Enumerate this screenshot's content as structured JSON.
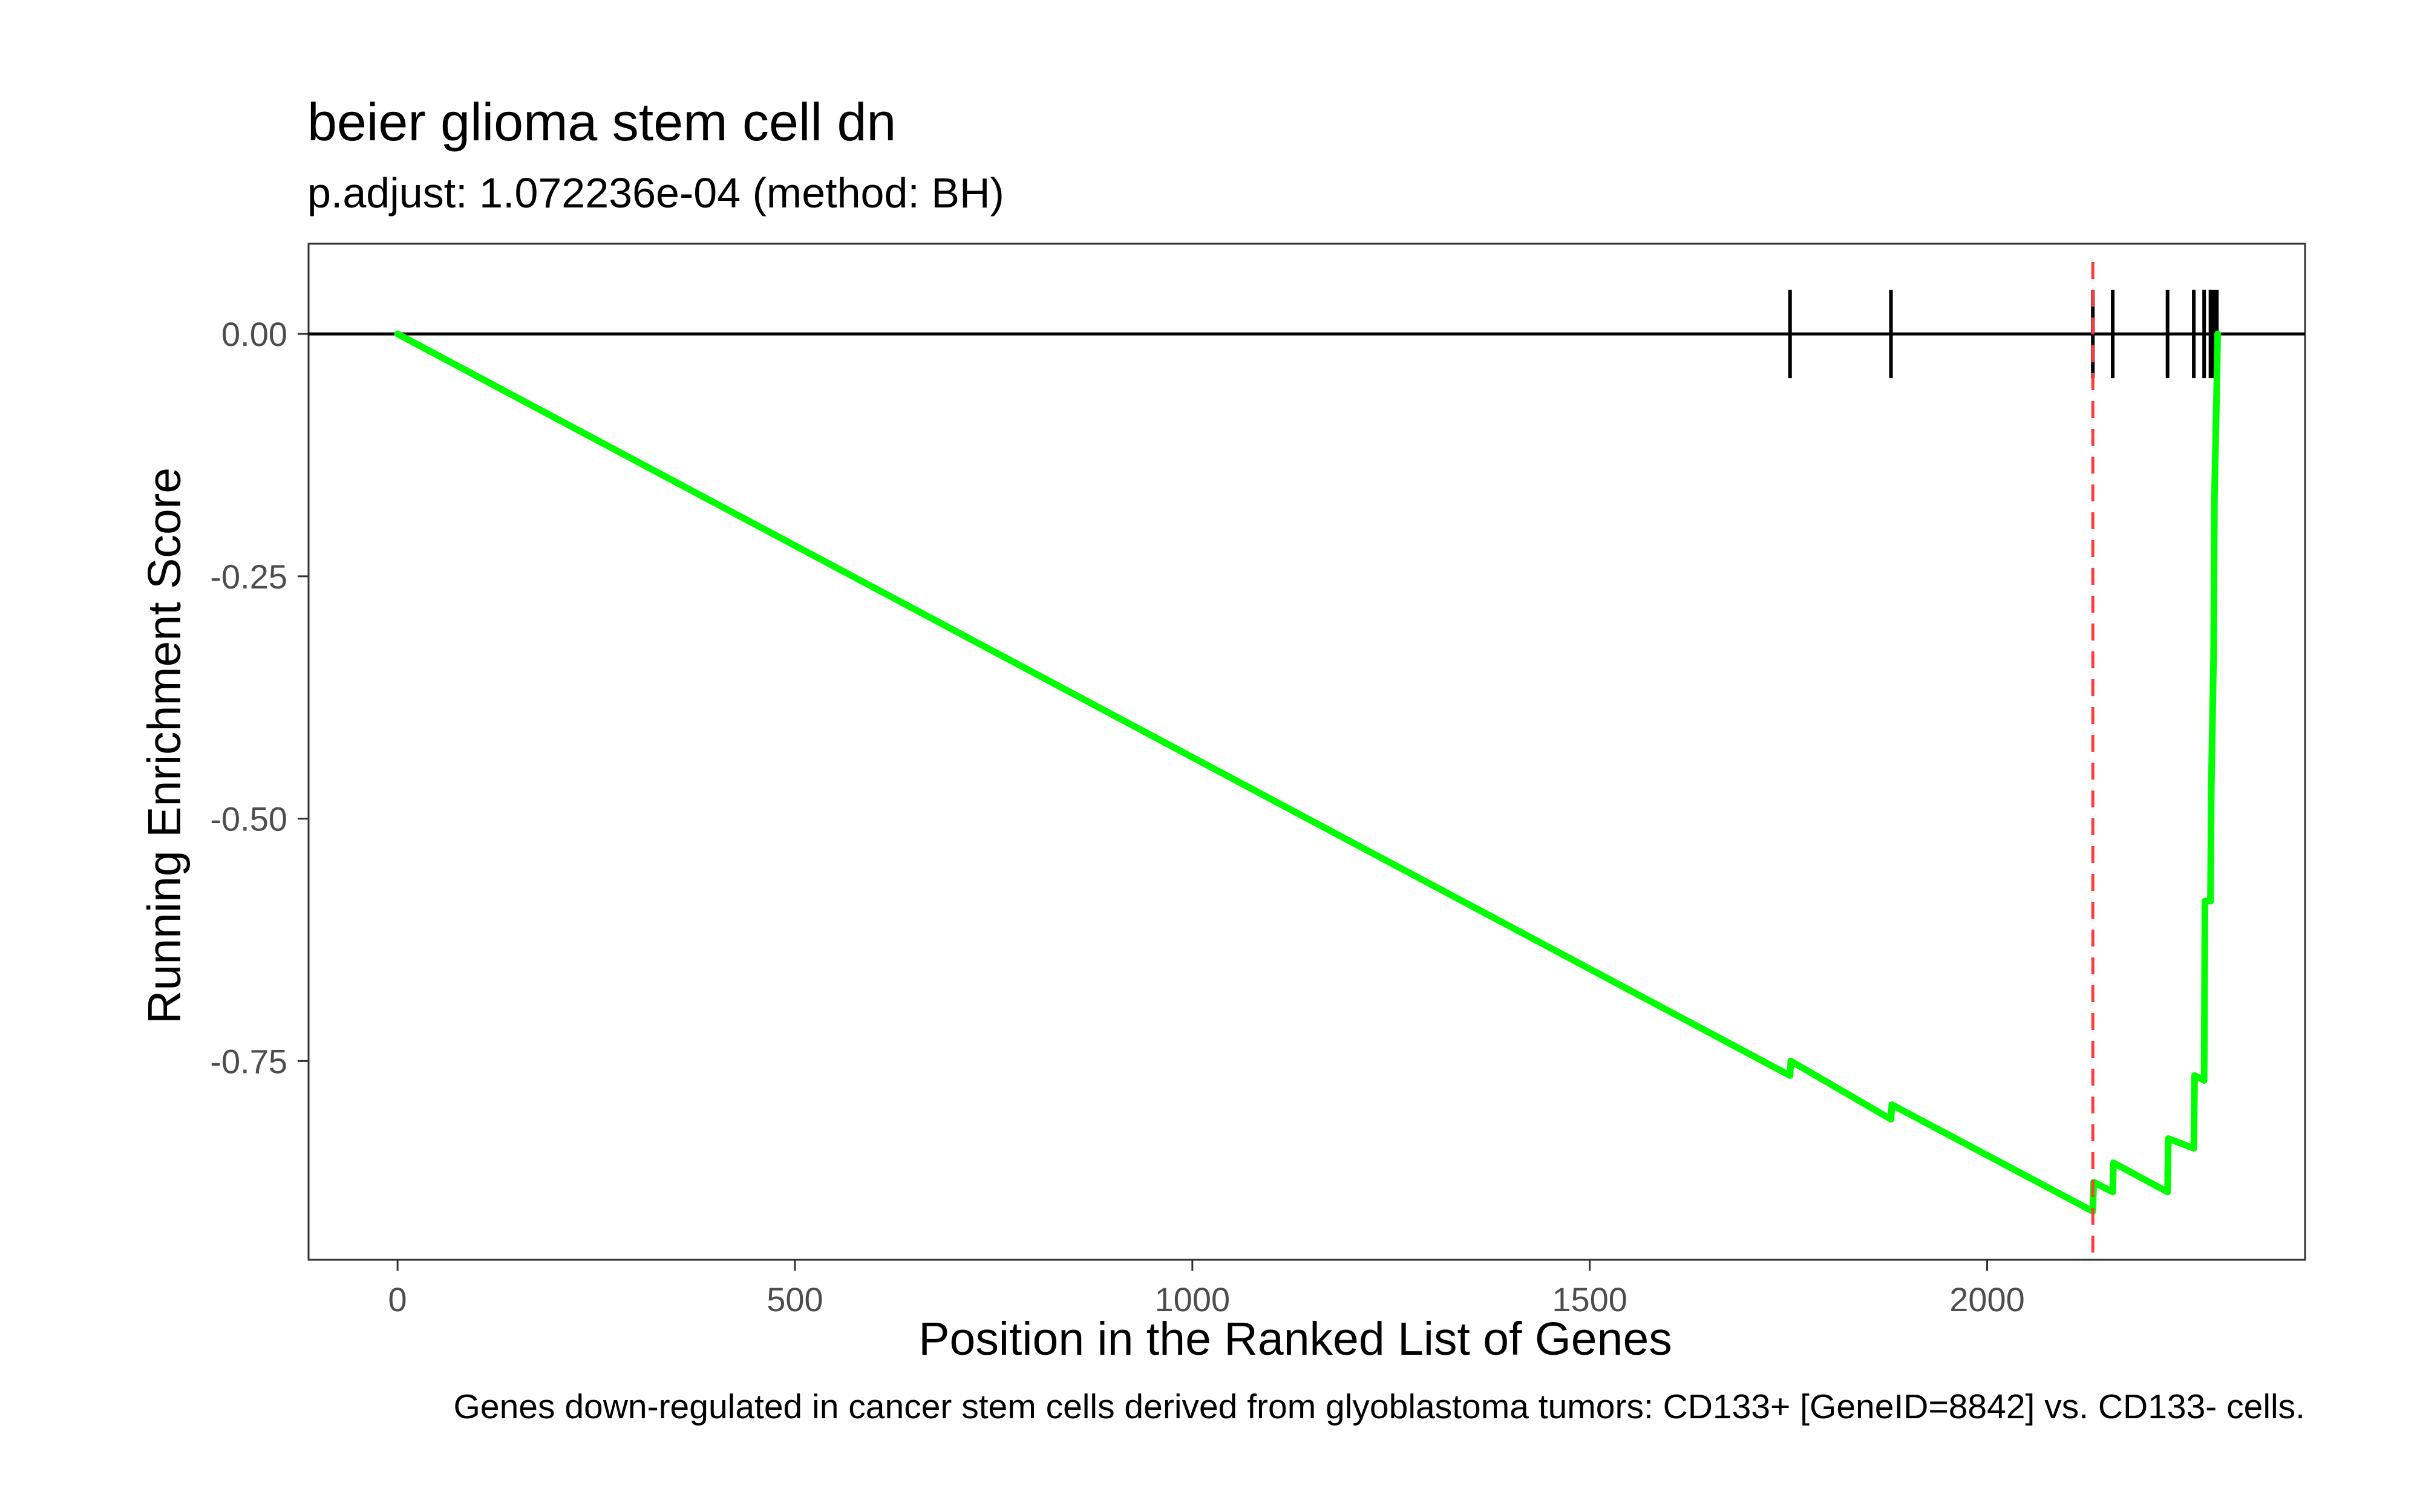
{
  "chart_data": {
    "type": "line",
    "title": "beier glioma stem cell dn",
    "subtitle": "p.adjust: 1.072236e-04 (method: BH)",
    "xlabel": "Position in the Ranked List of Genes",
    "ylabel": "Running Enrichment Score",
    "caption": "Genes down-regulated in cancer stem cells derived from glyoblastoma tumors: CD133+ [GeneID=8842] vs. CD133- cells.",
    "xlim": [
      -112,
      2400
    ],
    "ylim": [
      -0.955,
      0.093
    ],
    "xticks": [
      0,
      500,
      1000,
      1500,
      2000
    ],
    "xtick_labels": [
      "0",
      "500",
      "1000",
      "1500",
      "2000"
    ],
    "yticks": [
      0.0,
      -0.25,
      -0.5,
      -0.75
    ],
    "ytick_labels": [
      "0.00",
      "-0.25",
      "-0.50",
      "-0.75"
    ],
    "grid": false,
    "legend": "none",
    "series": [
      {
        "color": "#00ff00",
        "x": [
          0,
          1752,
          1753,
          1879,
          1880,
          2133,
          2134,
          2158,
          2159,
          2227,
          2228,
          2260,
          2261,
          2273,
          2274,
          2281,
          2282,
          2285,
          2286,
          2289,
          2290
        ],
        "y": [
          0.0,
          -0.765,
          -0.75,
          -0.81,
          -0.795,
          -0.905,
          -0.875,
          -0.885,
          -0.855,
          -0.885,
          -0.83,
          -0.84,
          -0.765,
          -0.77,
          -0.585,
          -0.585,
          -0.47,
          -0.33,
          -0.17,
          -0.05,
          0.0
        ]
      }
    ],
    "hits": [
      1752,
      1879,
      2133,
      2158,
      2227,
      2260,
      2273,
      2281,
      2285,
      2289
    ],
    "hits_color": "#000000",
    "zero_line": 0.0,
    "vline": {
      "x": 2133,
      "color": "#ff3b3b",
      "style": "dashed"
    }
  }
}
